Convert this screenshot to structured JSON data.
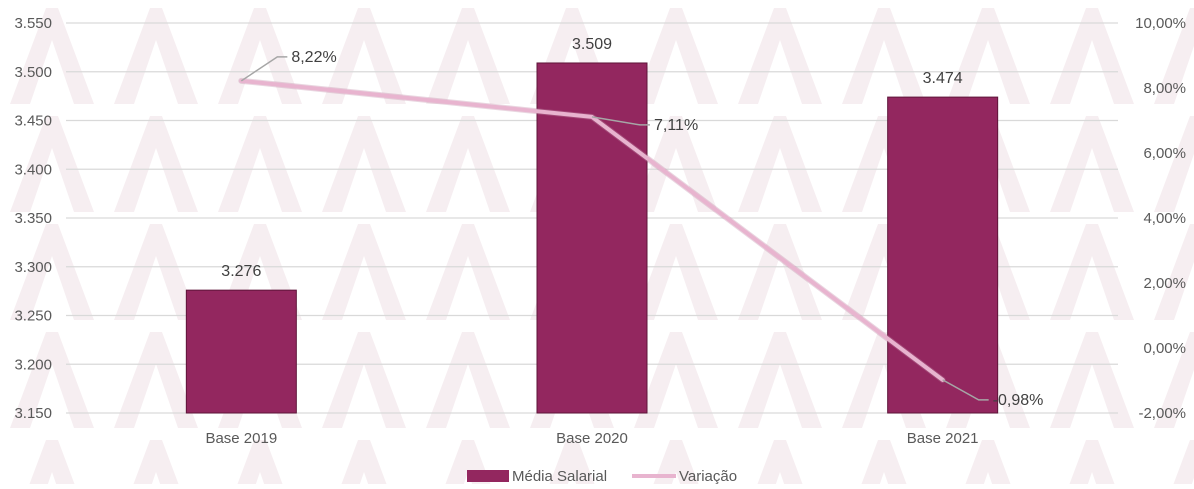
{
  "chart_data": {
    "type": "bar",
    "categories": [
      "Base 2019",
      "Base 2020",
      "Base 2021"
    ],
    "series": [
      {
        "name": "Média Salarial",
        "type": "bar",
        "axis": "left",
        "color": "#93275f",
        "values": [
          3276,
          3509,
          3474
        ],
        "labels": [
          "3.276",
          "3.509",
          "3.474"
        ]
      },
      {
        "name": "Variação",
        "type": "line",
        "axis": "right",
        "color": "#e8b4cf",
        "values": [
          8.22,
          7.11,
          -0.98
        ],
        "labels": [
          "8,22%",
          "7,11%",
          "-0,98%"
        ]
      }
    ],
    "left_axis": {
      "ylim": [
        3150,
        3550
      ],
      "ticks": [
        3150,
        3200,
        3250,
        3300,
        3350,
        3400,
        3450,
        3500,
        3550
      ],
      "tick_labels": [
        "3.150",
        "3.200",
        "3.250",
        "3.300",
        "3.350",
        "3.400",
        "3.450",
        "3.500",
        "3.550"
      ]
    },
    "right_axis": {
      "ylim": [
        -2,
        10
      ],
      "ticks": [
        -2,
        0,
        2,
        4,
        6,
        8,
        10
      ],
      "tick_labels": [
        "-2,00%",
        "0,00%",
        "2,00%",
        "4,00%",
        "6,00%",
        "8,00%",
        "10,00%"
      ]
    },
    "grid": true,
    "legend_position": "bottom",
    "title": "",
    "xlabel": "",
    "ylabel": ""
  }
}
